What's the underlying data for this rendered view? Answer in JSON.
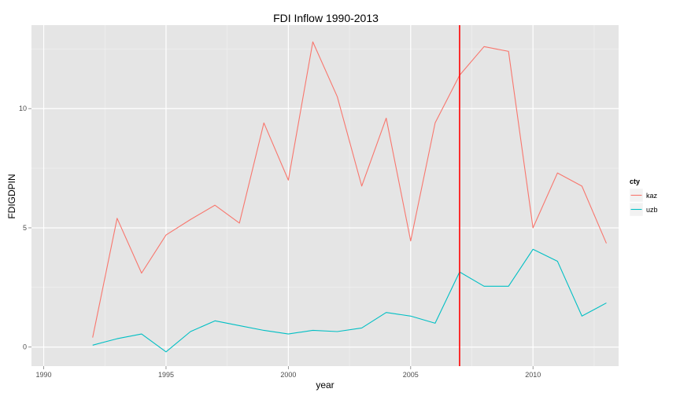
{
  "chart_data": {
    "type": "line",
    "title": "FDI Inflow 1990-2013",
    "xlabel": "year",
    "ylabel": "FDIGDPIN",
    "xlim": [
      1989.5,
      2013.5
    ],
    "ylim": [
      -0.8,
      13.5
    ],
    "x_ticks": [
      1990,
      1995,
      2000,
      2005,
      2010
    ],
    "y_ticks": [
      0,
      5,
      10
    ],
    "grid": true,
    "legend": {
      "title": "cty",
      "position": "right"
    },
    "vline": {
      "x": 2007,
      "color": "#ff0000"
    },
    "x": [
      1992,
      1993,
      1994,
      1995,
      1996,
      1997,
      1998,
      1999,
      2000,
      2001,
      2002,
      2003,
      2004,
      2005,
      2006,
      2007,
      2008,
      2009,
      2010,
      2011,
      2012,
      2013
    ],
    "series": [
      {
        "name": "kaz",
        "color": "#F8766D",
        "values": [
          0.4,
          5.4,
          3.1,
          4.7,
          5.35,
          5.95,
          5.2,
          9.4,
          7.0,
          12.8,
          10.5,
          6.75,
          9.6,
          4.45,
          9.4,
          11.4,
          12.6,
          12.4,
          5.0,
          7.3,
          6.75,
          4.35
        ]
      },
      {
        "name": "uzb",
        "color": "#00BFC4",
        "values": [
          0.08,
          0.35,
          0.55,
          -0.2,
          0.65,
          1.1,
          0.9,
          0.7,
          0.55,
          0.7,
          0.65,
          0.8,
          1.45,
          1.3,
          1.0,
          3.15,
          2.55,
          2.55,
          4.1,
          3.6,
          1.3,
          1.85
        ]
      }
    ]
  }
}
